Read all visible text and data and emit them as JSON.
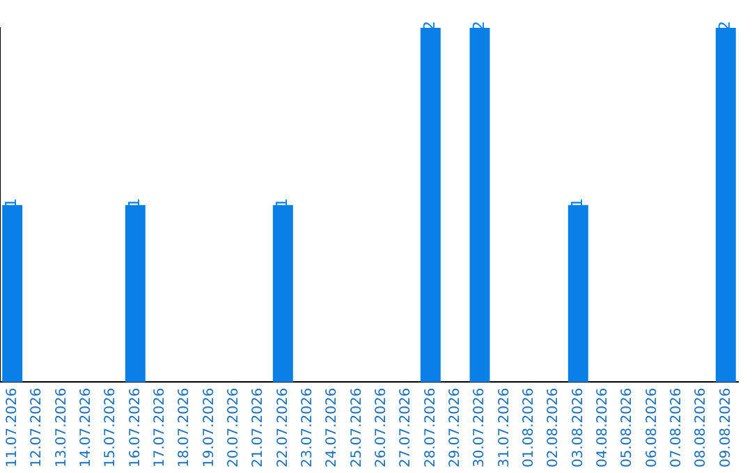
{
  "chart_data": {
    "type": "bar",
    "categories": [
      "11.07.2026",
      "12.07.2026",
      "13.07.2026",
      "14.07.2026",
      "15.07.2026",
      "16.07.2026",
      "17.07.2026",
      "18.07.2026",
      "19.07.2026",
      "20.07.2026",
      "21.07.2026",
      "22.07.2026",
      "23.07.2026",
      "24.07.2026",
      "25.07.2026",
      "26.07.2026",
      "27.07.2026",
      "28.07.2026",
      "29.07.2026",
      "30.07.2026",
      "31.07.2026",
      "01.08.2026",
      "02.08.2026",
      "03.08.2026",
      "04.08.2026",
      "05.08.2026",
      "06.08.2026",
      "07.08.2026",
      "08.08.2026",
      "09.08.2026"
    ],
    "values": [
      1,
      0,
      0,
      0,
      0,
      1,
      0,
      0,
      0,
      0,
      0,
      1,
      0,
      0,
      0,
      0,
      0,
      2,
      0,
      2,
      0,
      0,
      0,
      1,
      0,
      0,
      0,
      0,
      0,
      2
    ],
    "value_labels": [
      "1",
      null,
      null,
      null,
      null,
      "1",
      null,
      null,
      null,
      null,
      null,
      "1",
      null,
      null,
      null,
      null,
      null,
      "2",
      null,
      "2",
      null,
      null,
      null,
      "1",
      null,
      null,
      null,
      null,
      null,
      "2"
    ],
    "color": "#0a7fe6",
    "ylim": [
      0,
      2
    ],
    "tick_labels": "x",
    "grid": false,
    "legend": false
  }
}
